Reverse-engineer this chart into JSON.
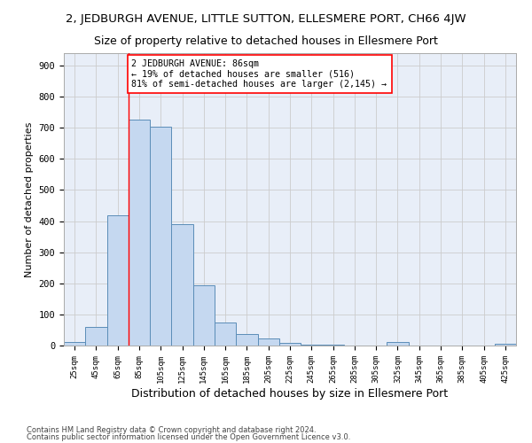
{
  "title": "2, JEDBURGH AVENUE, LITTLE SUTTON, ELLESMERE PORT, CH66 4JW",
  "subtitle": "Size of property relative to detached houses in Ellesmere Port",
  "xlabel": "Distribution of detached houses by size in Ellesmere Port",
  "ylabel": "Number of detached properties",
  "categories": [
    "25sqm",
    "45sqm",
    "65sqm",
    "85sqm",
    "105sqm",
    "125sqm",
    "145sqm",
    "165sqm",
    "185sqm",
    "205sqm",
    "225sqm",
    "245sqm",
    "265sqm",
    "285sqm",
    "305sqm",
    "325sqm",
    "345sqm",
    "365sqm",
    "385sqm",
    "405sqm",
    "425sqm"
  ],
  "values": [
    10,
    60,
    420,
    725,
    705,
    390,
    195,
    75,
    38,
    22,
    8,
    3,
    2,
    1,
    1,
    10,
    1,
    0,
    0,
    0,
    5
  ],
  "bar_color": "#c5d8f0",
  "bar_edge_color": "#5b8db8",
  "property_line_index": 3,
  "annotation_text": "2 JEDBURGH AVENUE: 86sqm\n← 19% of detached houses are smaller (516)\n81% of semi-detached houses are larger (2,145) →",
  "annotation_box_color": "white",
  "annotation_box_edge": "red",
  "ylim": [
    0,
    940
  ],
  "yticks": [
    0,
    100,
    200,
    300,
    400,
    500,
    600,
    700,
    800,
    900
  ],
  "grid_color": "#cccccc",
  "bg_color": "#e8eef8",
  "footer1": "Contains HM Land Registry data © Crown copyright and database right 2024.",
  "footer2": "Contains public sector information licensed under the Open Government Licence v3.0.",
  "title_fontsize": 9.5,
  "subtitle_fontsize": 9,
  "xlabel_fontsize": 9,
  "ylabel_fontsize": 8
}
